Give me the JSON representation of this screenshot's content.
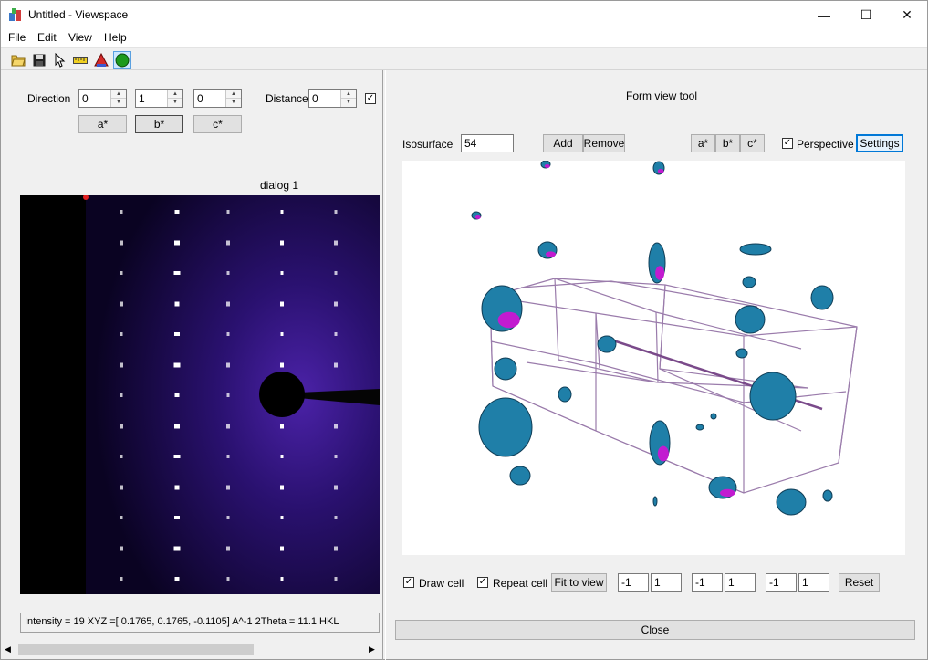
{
  "window": {
    "title": "Untitled - Viewspace",
    "controls": {
      "minimize": "—",
      "maximize": "☐",
      "close": "✕"
    }
  },
  "menu": [
    "File",
    "Edit",
    "View",
    "Help"
  ],
  "toolbar": {
    "icons": [
      "open-folder-icon",
      "save-icon",
      "pointer-icon",
      "ruler-icon",
      "triangle-icon",
      "green-circle-icon"
    ]
  },
  "left_panel": {
    "direction_label": "Direction",
    "direction_values": [
      "0",
      "1",
      "0"
    ],
    "distance_label": "Distance",
    "distance_value": "0",
    "distance_checked": "✓",
    "axis_buttons": [
      "a*",
      "b*",
      "c*"
    ],
    "dialog_title": "dialog 1",
    "status_text": "Intensity = 19   XYZ =[  0.1765,   0.1765,  -0.1105] A^-1   2Theta = 11.1   HKL"
  },
  "right_panel": {
    "title": "Form view tool",
    "isosurface_label": "Isosurface",
    "isosurface_value": "54",
    "add_label": "Add",
    "remove_label": "Remove",
    "axis_buttons": [
      "a*",
      "b*",
      "c*"
    ],
    "perspective_label": "Perspective",
    "perspective_checked": "✓",
    "settings_label": "Settings",
    "draw_cell_label": "Draw cell",
    "draw_cell_checked": "✓",
    "repeat_cell_label": "Repeat cell",
    "repeat_cell_checked": "✓",
    "fit_label": "Fit to view",
    "range_values": [
      "-1",
      "1",
      "-1",
      "1",
      "-1",
      "1"
    ],
    "reset_label": "Reset",
    "close_label": "Close"
  },
  "colors": {
    "blob": "#1f7fa8",
    "blob_dark": "#103e57",
    "magenta": "#c21bd0",
    "cell_lines": "#9a7bab",
    "diffraction_glow": "#3a1a8a"
  }
}
